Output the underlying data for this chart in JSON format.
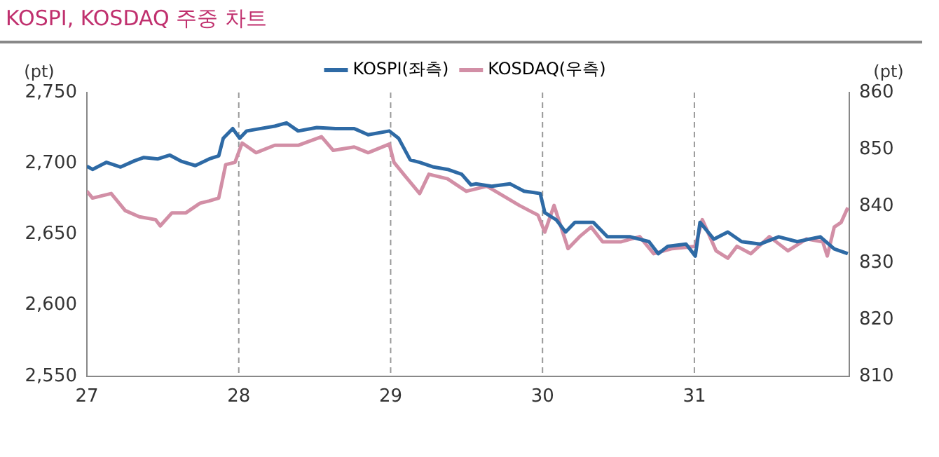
{
  "chart_data": {
    "type": "line",
    "title": "KOSPI, KOSDAQ 주중 차트",
    "ylabel": "(pt)",
    "y2label": "(pt)",
    "legend": "top",
    "grid": false,
    "line_style": "solid",
    "xlim": [
      27,
      32.02
    ],
    "xticks": [
      27,
      28,
      29,
      30,
      31
    ],
    "ylim": [
      2550,
      2750
    ],
    "yticks": [
      {
        "value": 2550,
        "label": "2,550"
      },
      {
        "value": 2600,
        "label": "2,600"
      },
      {
        "value": 2650,
        "label": "2,650"
      },
      {
        "value": 2700,
        "label": "2,700"
      },
      {
        "value": 2750,
        "label": "2,750"
      }
    ],
    "y2lim": [
      810,
      860
    ],
    "y2ticks": [
      810,
      820,
      830,
      840,
      850,
      860
    ],
    "ref_lines": [
      {
        "axis": "x",
        "value": 28,
        "color": "#999999",
        "line_style": "dashed"
      },
      {
        "axis": "x",
        "value": 29,
        "color": "#999999",
        "line_style": "dashed"
      },
      {
        "axis": "x",
        "value": 30,
        "color": "#999999",
        "line_style": "dashed"
      },
      {
        "axis": "x",
        "value": 31,
        "color": "#999999",
        "line_style": "dashed"
      }
    ],
    "series": [
      {
        "name": "KOSPI(좌측)",
        "color": "#2e6aa5",
        "x": [
          27,
          27.037,
          27.129,
          27.222,
          27.314,
          27.375,
          27.468,
          27.545,
          27.622,
          27.714,
          27.806,
          27.868,
          27.898,
          27.96,
          28.006,
          28.052,
          28.145,
          28.237,
          28.314,
          28.391,
          28.514,
          28.637,
          28.76,
          28.852,
          28.991,
          29.052,
          29.129,
          29.191,
          29.283,
          29.375,
          29.468,
          29.529,
          29.56,
          29.665,
          29.787,
          29.878,
          29.985,
          30.015,
          30.091,
          30.152,
          30.213,
          30.335,
          30.427,
          30.579,
          30.701,
          30.762,
          30.823,
          30.945,
          31.006,
          31.037,
          31.128,
          31.22,
          31.311,
          31.433,
          31.555,
          31.677,
          31.829,
          31.921,
          32.01
        ],
        "values": [
          2698.1,
          2695.8,
          2700.8,
          2697.5,
          2701.9,
          2704.2,
          2703.2,
          2705.9,
          2701.5,
          2698.5,
          2703.2,
          2705.3,
          2717.8,
          2724.6,
          2717.8,
          2722.9,
          2724.6,
          2726.3,
          2728.6,
          2722.9,
          2725.3,
          2724.6,
          2724.6,
          2720.2,
          2722.9,
          2717.8,
          2702.5,
          2700.8,
          2697.5,
          2695.8,
          2692.4,
          2684.9,
          2685.6,
          2683.9,
          2685.6,
          2680.5,
          2678.8,
          2665.3,
          2660.2,
          2651.7,
          2658.5,
          2658.5,
          2648.3,
          2648.3,
          2644.9,
          2636.4,
          2641.5,
          2643.2,
          2634.7,
          2658.5,
          2646.6,
          2651.7,
          2644.9,
          2643.2,
          2648.3,
          2644.9,
          2648.3,
          2639.8,
          2636.4
        ]
      },
      {
        "name": "KOSDAQ(우측)",
        "color": "#d28fa6",
        "axis": "y2",
        "x": [
          27,
          27.037,
          27.098,
          27.16,
          27.252,
          27.345,
          27.452,
          27.483,
          27.56,
          27.652,
          27.745,
          27.806,
          27.868,
          27.914,
          27.975,
          28.022,
          28.114,
          28.237,
          28.391,
          28.545,
          28.622,
          28.76,
          28.852,
          28.991,
          29.022,
          29.098,
          29.191,
          29.252,
          29.375,
          29.498,
          29.634,
          29.848,
          29.97,
          30.015,
          30.076,
          30.168,
          30.244,
          30.32,
          30.396,
          30.518,
          30.64,
          30.732,
          30.854,
          31.006,
          31.052,
          31.143,
          31.22,
          31.28,
          31.372,
          31.494,
          31.616,
          31.738,
          31.845,
          31.875,
          31.921,
          31.966,
          32.01
        ],
        "values": [
          842.6,
          841.4,
          841.8,
          842.2,
          839.2,
          838.1,
          837.6,
          836.5,
          838.8,
          838.8,
          840.5,
          840.9,
          841.4,
          847.3,
          847.7,
          851.1,
          849.4,
          850.7,
          850.7,
          852.2,
          849.8,
          850.4,
          849.4,
          850.9,
          847.7,
          845.2,
          842.2,
          845.6,
          844.8,
          842.6,
          843.5,
          840.1,
          838.4,
          835.4,
          840.1,
          832.5,
          834.6,
          836.3,
          833.7,
          833.7,
          834.6,
          831.6,
          832.5,
          832.9,
          837.6,
          832.1,
          830.8,
          832.9,
          831.6,
          834.6,
          832.1,
          834.2,
          833.7,
          831.2,
          836.3,
          837.1,
          839.7
        ]
      }
    ]
  }
}
